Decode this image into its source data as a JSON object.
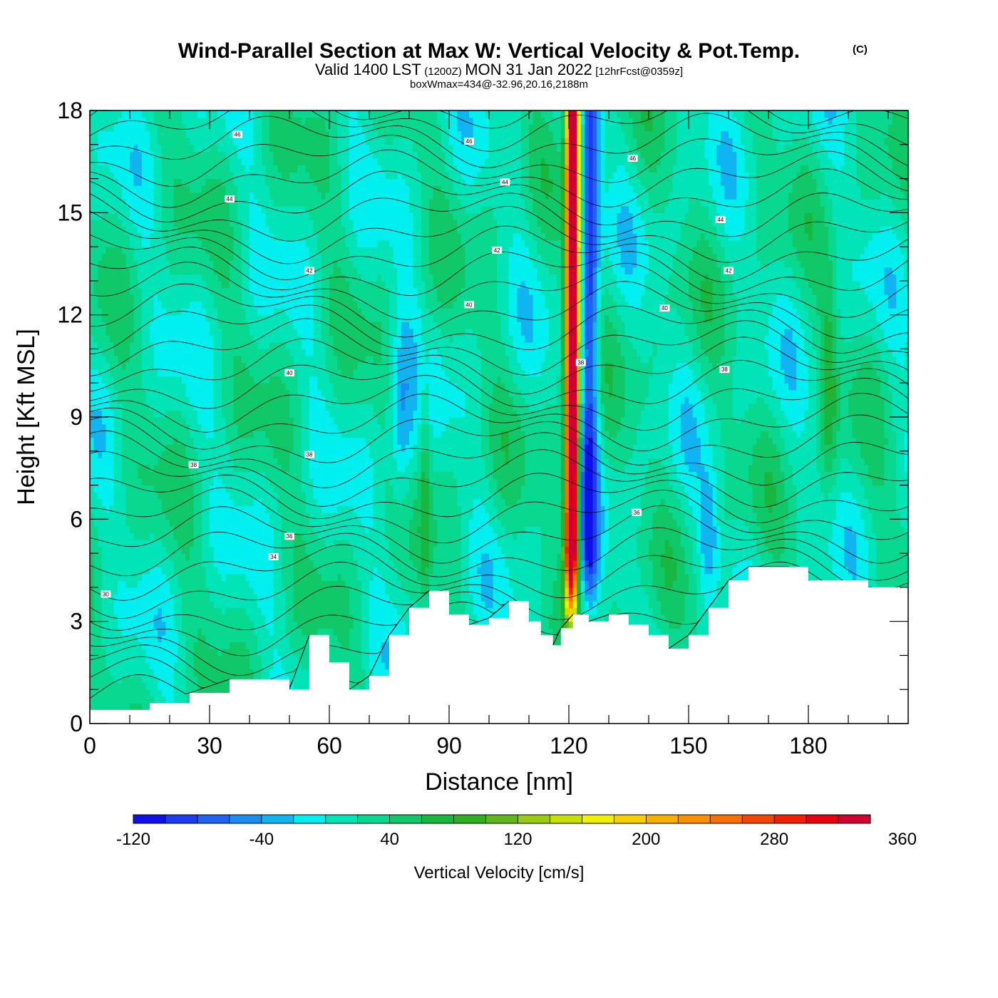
{
  "chart_data": {
    "type": "heatmap",
    "title": "Wind-Parallel Section at Max W: Vertical Velocity & Pot.Temp.",
    "title_mark": "(C)",
    "subtitle": {
      "part1": "Valid 1400 LST",
      "part2": "(1200Z)",
      "part3": "MON 31 Jan 2022",
      "part4": "[12hrFcst@0359z]"
    },
    "subtitle2": "boxWmax=434@-32.96,20.16,2188m",
    "xlabel": "Distance [nm]",
    "ylabel": "Height [Kft MSL]",
    "xlim": [
      0,
      205
    ],
    "ylim": [
      0,
      18
    ],
    "x_ticks": [
      "0",
      "30",
      "60",
      "90",
      "120",
      "150",
      "180"
    ],
    "y_ticks": [
      "0",
      "3",
      "6",
      "9",
      "12",
      "15",
      "18"
    ],
    "colorbar": {
      "label": "Vertical Velocity [cm/s]",
      "min": -120,
      "step": 20,
      "tick_labels": [
        "-120",
        "-40",
        "40",
        "120",
        "200",
        "280",
        "360"
      ],
      "colors": [
        "#1010e8",
        "#1a3ef0",
        "#1f64f0",
        "#1b8cf0",
        "#10b4f0",
        "#00f0f0",
        "#00e4b8",
        "#08d890",
        "#10c868",
        "#18b840",
        "#30b020",
        "#60b818",
        "#98cc10",
        "#c8e000",
        "#f0f000",
        "#f8d000",
        "#f8b000",
        "#f89000",
        "#f87000",
        "#f04800",
        "#f02000",
        "#e80010",
        "#d00030"
      ]
    },
    "terrain_kft": {
      "x": [
        0,
        15,
        25,
        35,
        50,
        55,
        60,
        65,
        70,
        75,
        80,
        85,
        90,
        95,
        100,
        105,
        110,
        113,
        116,
        118,
        121,
        125,
        130,
        135,
        140,
        145,
        150,
        155,
        160,
        165,
        170,
        175,
        180,
        195,
        205
      ],
      "y": [
        0.4,
        0.6,
        0.9,
        1.3,
        1.0,
        2.6,
        1.8,
        1.0,
        1.4,
        2.6,
        3.4,
        3.9,
        3.2,
        2.9,
        3.1,
        3.6,
        3.0,
        2.6,
        2.3,
        2.8,
        3.2,
        3.0,
        3.2,
        2.9,
        2.6,
        2.2,
        2.6,
        3.4,
        4.2,
        4.6,
        4.6,
        4.6,
        4.2,
        4.0,
        3.9
      ]
    },
    "updraft": {
      "core_x_bottom": 120.5,
      "core_x_top": 121.0,
      "half_width_nm": 1.6,
      "peak_cms": 434,
      "downdraft_x_offset_nm": 4.5,
      "downdraft_cms": -110
    },
    "theta_contours": [
      {
        "label": "30",
        "x": 4,
        "y": 3.8
      },
      {
        "label": "34",
        "x": 46,
        "y": 4.9
      },
      {
        "label": "36",
        "x": 50,
        "y": 5.5
      },
      {
        "label": "38",
        "x": 26,
        "y": 7.6
      },
      {
        "label": "38",
        "x": 55,
        "y": 7.9
      },
      {
        "label": "36",
        "x": 137,
        "y": 6.2
      },
      {
        "label": "40",
        "x": 50,
        "y": 10.3
      },
      {
        "label": "38",
        "x": 123,
        "y": 10.6
      },
      {
        "label": "38",
        "x": 159,
        "y": 10.4
      },
      {
        "label": "40",
        "x": 95,
        "y": 12.3
      },
      {
        "label": "40",
        "x": 144,
        "y": 12.2
      },
      {
        "label": "42",
        "x": 55,
        "y": 13.3
      },
      {
        "label": "42",
        "x": 102,
        "y": 13.9
      },
      {
        "label": "42",
        "x": 160,
        "y": 13.3
      },
      {
        "label": "44",
        "x": 35,
        "y": 15.4
      },
      {
        "label": "44",
        "x": 104,
        "y": 15.9
      },
      {
        "label": "44",
        "x": 158,
        "y": 14.8
      },
      {
        "label": "46",
        "x": 37,
        "y": 17.3
      },
      {
        "label": "46",
        "x": 95,
        "y": 17.1
      },
      {
        "label": "46",
        "x": 136,
        "y": 16.6
      }
    ]
  }
}
